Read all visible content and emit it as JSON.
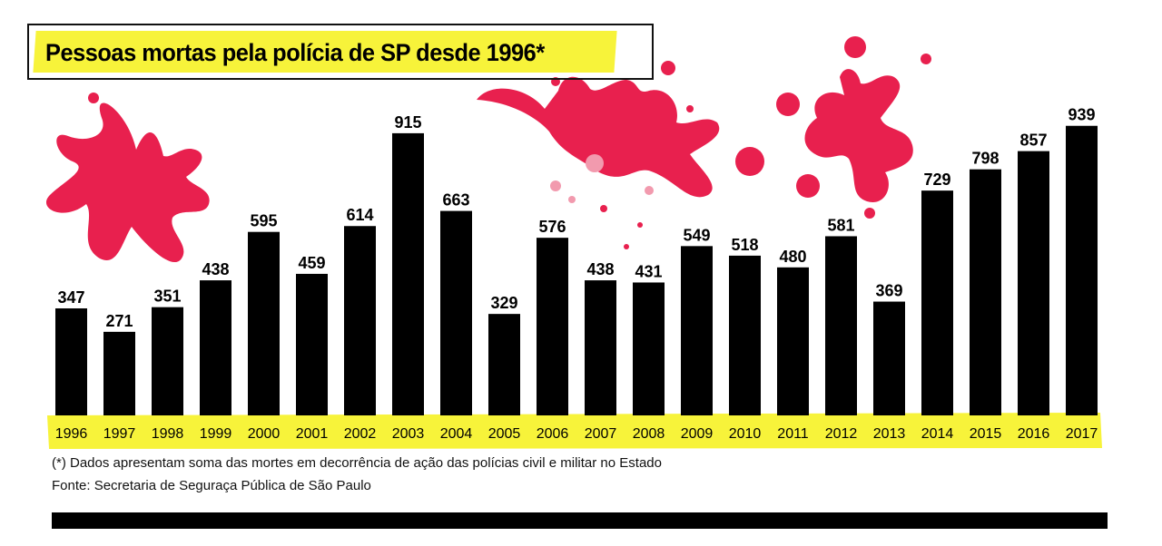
{
  "colors": {
    "bar": "#000000",
    "highlight": "#f7f33a",
    "splatter": "#e8204e",
    "splatter_light": "#f29aae",
    "text": "#000000"
  },
  "chart_data": {
    "type": "bar",
    "title": "Pessoas mortas pela polícia de SP desde 1996*",
    "xlabel": "",
    "ylabel": "",
    "ylim": [
      0,
      1000
    ],
    "grid": false,
    "legend": "none",
    "categories": [
      "1996",
      "1997",
      "1998",
      "1999",
      "2000",
      "2001",
      "2002",
      "2003",
      "2004",
      "2005",
      "2006",
      "2007",
      "2008",
      "2009",
      "2010",
      "2011",
      "2012",
      "2013",
      "2014",
      "2015",
      "2016",
      "2017"
    ],
    "values": [
      347,
      271,
      351,
      438,
      595,
      459,
      614,
      915,
      663,
      329,
      576,
      438,
      431,
      549,
      518,
      480,
      581,
      369,
      729,
      798,
      857,
      939
    ],
    "data_labels": [
      "347",
      "271",
      "351",
      "438",
      "595",
      "459",
      "614",
      "915",
      "663",
      "329",
      "576",
      "438",
      "431",
      "549",
      "518",
      "480",
      "581",
      "369",
      "729",
      "798",
      "857",
      "939"
    ]
  },
  "footnotes": {
    "note": "(*) Dados apresentam soma das mortes em decorrência de ação das polícias civil e militar no Estado",
    "source": "Fonte: Secretaria de Seguraça Pública de São Paulo"
  }
}
